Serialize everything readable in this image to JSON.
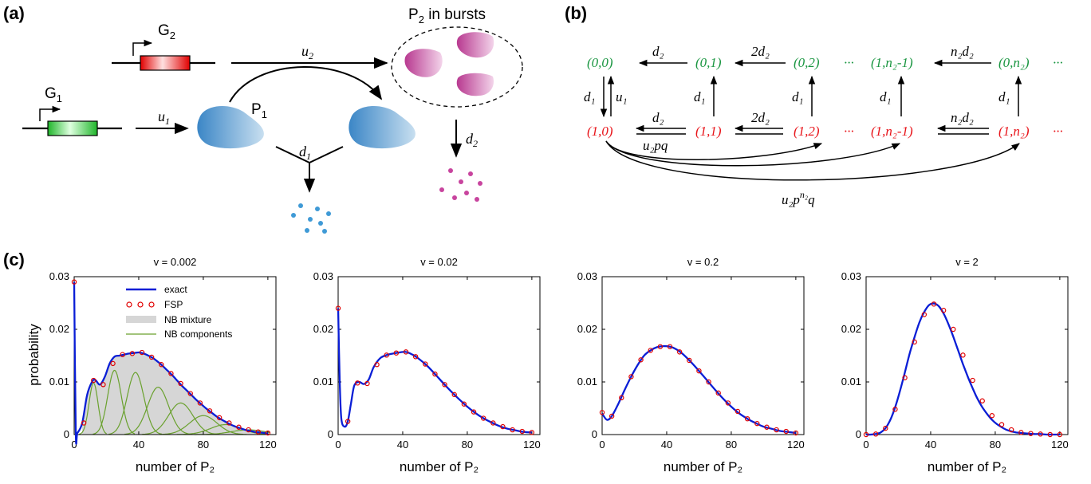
{
  "panels": {
    "a": "(a)",
    "b": "(b)",
    "c": "(c)"
  },
  "panel_a": {
    "gene1": "G",
    "gene1_sub": "1",
    "gene2": "G",
    "gene2_sub": "2",
    "protein1": "P",
    "protein1_sub": "1",
    "bursts_prefix": "P",
    "bursts_sub": "2",
    "bursts_suffix": " in bursts",
    "u1": "u",
    "u1_sub": "1",
    "u2": "u",
    "u2_sub": "2",
    "d1": "d",
    "d1_sub": "1",
    "d2": "d",
    "d2_sub": "2",
    "colors": {
      "gene1": "#2dbf3a",
      "gene2": "#e01010",
      "protein1": "#4a90c8",
      "protein2": "#c0449a"
    }
  },
  "panel_b": {
    "top_states": [
      "(0,0)",
      "(0,1)",
      "(0,2)",
      "···",
      "(1,n₂-1)",
      "(0,n₂)",
      "···"
    ],
    "bottom_states": [
      "(1,0)",
      "(1,1)",
      "(1,2)",
      "···",
      "(1,n₂-1)",
      "(1,n₂)",
      "···"
    ],
    "top_rates": [
      "d₂",
      "2d₂",
      "n₂d₂"
    ],
    "bottom_rates": [
      "d₂",
      "2d₂",
      "n₂d₂"
    ],
    "vertical_down": "d₁",
    "vertical_up": "u₁",
    "vertical_rate": "d₁",
    "burst_rate": "u₂pq",
    "long_rate_base": "u₂p",
    "long_rate_exp": "n₂",
    "long_rate_tail": "q",
    "colors": {
      "top": "#1a9641",
      "bottom": "#e8141a"
    }
  },
  "panel_c": {
    "legend": {
      "exact": "exact",
      "fsp": "FSP",
      "mixture": "NB mixture",
      "components": "NB components"
    },
    "ylabel": "probability",
    "xlabel": "number of P₂"
  },
  "chart_data": [
    {
      "type": "line",
      "title": "v = 0.002",
      "xlabel": "number of P₂",
      "ylabel": "probability",
      "xlim": [
        0,
        125
      ],
      "ylim": [
        0,
        0.03
      ],
      "xticks": [
        0,
        40,
        80,
        120
      ],
      "yticks": [
        0,
        0.01,
        0.02,
        0.03
      ],
      "ytick_labels": [
        "0",
        "0.01",
        "0.02",
        "0.03"
      ],
      "series": [
        {
          "name": "exact",
          "x": [
            0,
            1,
            2,
            5,
            8,
            11,
            13,
            16,
            19,
            22,
            25,
            28,
            31,
            34,
            37,
            40,
            43,
            46,
            49,
            52,
            55,
            58,
            61,
            64,
            67,
            70,
            73,
            76,
            79,
            82,
            85,
            88,
            91,
            94,
            97,
            100,
            103,
            106,
            109,
            112,
            115,
            118,
            120
          ],
          "y": [
            0.029,
            0.0005,
            0.0003,
            0.0022,
            0.0075,
            0.01,
            0.0104,
            0.0095,
            0.011,
            0.0135,
            0.0148,
            0.015,
            0.0152,
            0.0154,
            0.0155,
            0.0156,
            0.0154,
            0.015,
            0.0145,
            0.0138,
            0.013,
            0.0121,
            0.0112,
            0.0102,
            0.0092,
            0.0083,
            0.0074,
            0.0065,
            0.0057,
            0.0049,
            0.0042,
            0.0035,
            0.0029,
            0.0024,
            0.0019,
            0.0015,
            0.0012,
            0.0009,
            0.0007,
            0.0005,
            0.0004,
            0.0003,
            0.0002
          ]
        },
        {
          "name": "FSP",
          "x": [
            0,
            6,
            12,
            18,
            24,
            30,
            36,
            42,
            48,
            54,
            60,
            66,
            72,
            78,
            84,
            90,
            96,
            102,
            108,
            114,
            120
          ],
          "y": [
            0.029,
            0.0022,
            0.0103,
            0.0095,
            0.0135,
            0.0152,
            0.0154,
            0.0156,
            0.0147,
            0.0133,
            0.0116,
            0.0097,
            0.0078,
            0.006,
            0.0045,
            0.0032,
            0.0022,
            0.0014,
            0.0009,
            0.0005,
            0.0003
          ]
        },
        {
          "name": "NB components",
          "components": [
            {
              "mean": 12,
              "sd": 2.8,
              "peak": 0.0098
            },
            {
              "mean": 25,
              "sd": 4.2,
              "peak": 0.0122
            },
            {
              "mean": 38,
              "sd": 5.2,
              "peak": 0.0118
            },
            {
              "mean": 52,
              "sd": 6.5,
              "peak": 0.009
            },
            {
              "mean": 66,
              "sd": 7.5,
              "peak": 0.006
            },
            {
              "mean": 80,
              "sd": 8.5,
              "peak": 0.0036
            },
            {
              "mean": 94,
              "sd": 9.5,
              "peak": 0.0019
            },
            {
              "mean": 108,
              "sd": 10.5,
              "peak": 0.0009
            }
          ]
        }
      ]
    },
    {
      "type": "line",
      "title": "v = 0.02",
      "xlabel": "number of P₂",
      "ylabel": "",
      "xlim": [
        0,
        125
      ],
      "ylim": [
        0,
        0.03
      ],
      "xticks": [
        0,
        40,
        80,
        120
      ],
      "yticks": [
        0,
        0.01,
        0.02,
        0.03
      ],
      "ytick_labels": [
        "0",
        "0.01",
        "0.02",
        "0.03"
      ],
      "series": [
        {
          "name": "exact",
          "x": [
            0,
            1,
            2,
            4,
            6,
            8,
            10,
            13,
            16,
            19,
            22,
            26,
            30,
            34,
            38,
            42,
            46,
            50,
            55,
            60,
            65,
            70,
            75,
            80,
            85,
            90,
            95,
            100,
            105,
            110,
            115,
            120
          ],
          "y": [
            0.024,
            0.01,
            0.003,
            0.0015,
            0.0025,
            0.006,
            0.0093,
            0.01,
            0.0096,
            0.0105,
            0.0128,
            0.0145,
            0.0151,
            0.0154,
            0.0156,
            0.0157,
            0.0152,
            0.0144,
            0.0131,
            0.0115,
            0.0098,
            0.0082,
            0.0067,
            0.0053,
            0.0041,
            0.0031,
            0.0023,
            0.0016,
            0.0011,
            0.0008,
            0.0005,
            0.0004
          ]
        },
        {
          "name": "FSP",
          "x": [
            0,
            6,
            12,
            18,
            24,
            30,
            36,
            42,
            48,
            54,
            60,
            66,
            72,
            78,
            84,
            90,
            96,
            102,
            108,
            114,
            120
          ],
          "y": [
            0.024,
            0.0025,
            0.0098,
            0.0097,
            0.0133,
            0.0151,
            0.0155,
            0.0157,
            0.0148,
            0.0134,
            0.0115,
            0.0095,
            0.0076,
            0.0058,
            0.0043,
            0.0031,
            0.0022,
            0.0015,
            0.0009,
            0.0006,
            0.0004
          ]
        }
      ]
    },
    {
      "type": "line",
      "title": "v = 0.2",
      "xlabel": "number of P₂",
      "ylabel": "",
      "xlim": [
        0,
        125
      ],
      "ylim": [
        0,
        0.03
      ],
      "xticks": [
        0,
        40,
        80,
        120
      ],
      "yticks": [
        0,
        0.01,
        0.02,
        0.03
      ],
      "ytick_labels": [
        "0",
        "0.01",
        "0.02",
        "0.03"
      ],
      "series": [
        {
          "name": "exact",
          "x": [
            0,
            3,
            6,
            10,
            14,
            18,
            22,
            26,
            30,
            34,
            38,
            42,
            46,
            50,
            55,
            60,
            65,
            70,
            75,
            80,
            85,
            90,
            95,
            100,
            105,
            110,
            115,
            120
          ],
          "y": [
            0.004,
            0.0028,
            0.0035,
            0.0058,
            0.0085,
            0.011,
            0.0132,
            0.015,
            0.016,
            0.0166,
            0.0168,
            0.0167,
            0.0162,
            0.0153,
            0.0138,
            0.0121,
            0.0103,
            0.0085,
            0.0068,
            0.0053,
            0.004,
            0.003,
            0.0022,
            0.0015,
            0.0011,
            0.0007,
            0.0005,
            0.0003
          ]
        },
        {
          "name": "FSP",
          "x": [
            0,
            6,
            12,
            18,
            24,
            30,
            36,
            42,
            48,
            54,
            60,
            66,
            72,
            78,
            84,
            90,
            96,
            102,
            108,
            114,
            120
          ],
          "y": [
            0.0042,
            0.0035,
            0.007,
            0.011,
            0.0142,
            0.016,
            0.0167,
            0.0167,
            0.0157,
            0.0141,
            0.0121,
            0.01,
            0.0079,
            0.006,
            0.0044,
            0.003,
            0.0021,
            0.0014,
            0.0009,
            0.0006,
            0.0003
          ]
        }
      ]
    },
    {
      "type": "line",
      "title": "v = 2",
      "xlabel": "number of P₂",
      "ylabel": "",
      "xlim": [
        0,
        125
      ],
      "ylim": [
        0,
        0.03
      ],
      "xticks": [
        0,
        40,
        80,
        120
      ],
      "yticks": [
        0,
        0.01,
        0.02,
        0.03
      ],
      "ytick_labels": [
        "0",
        "0.01",
        "0.02",
        "0.03"
      ],
      "series": [
        {
          "name": "exact",
          "x": [
            0,
            3,
            6,
            9,
            12,
            15,
            18,
            21,
            24,
            27,
            30,
            33,
            36,
            39,
            42,
            45,
            48,
            51,
            54,
            57,
            60,
            63,
            66,
            69,
            72,
            75,
            78,
            81,
            84,
            87,
            90,
            93,
            96,
            100,
            104,
            108,
            112,
            116,
            120
          ],
          "y": [
            0.0,
            0.0,
            0.0001,
            0.0004,
            0.0012,
            0.0028,
            0.0052,
            0.0083,
            0.0118,
            0.0154,
            0.0185,
            0.0213,
            0.0233,
            0.0246,
            0.0249,
            0.0244,
            0.023,
            0.021,
            0.0186,
            0.016,
            0.0134,
            0.011,
            0.0088,
            0.0068,
            0.0052,
            0.0039,
            0.0028,
            0.002,
            0.0014,
            0.0009,
            0.0006,
            0.0004,
            0.0003,
            0.0002,
            0.0001,
            0.0001,
            0.0,
            0.0,
            0.0
          ]
        },
        {
          "name": "FSP",
          "x": [
            0,
            6,
            12,
            18,
            24,
            30,
            36,
            42,
            48,
            54,
            60,
            66,
            72,
            78,
            84,
            90,
            96,
            102,
            108,
            114,
            120
          ],
          "y": [
            0.0,
            0.0001,
            0.0012,
            0.0048,
            0.0108,
            0.0176,
            0.0228,
            0.0248,
            0.0236,
            0.02,
            0.0151,
            0.0103,
            0.0064,
            0.0036,
            0.0019,
            0.0009,
            0.0004,
            0.0002,
            0.0001,
            0.0,
            0.0
          ]
        }
      ]
    }
  ]
}
